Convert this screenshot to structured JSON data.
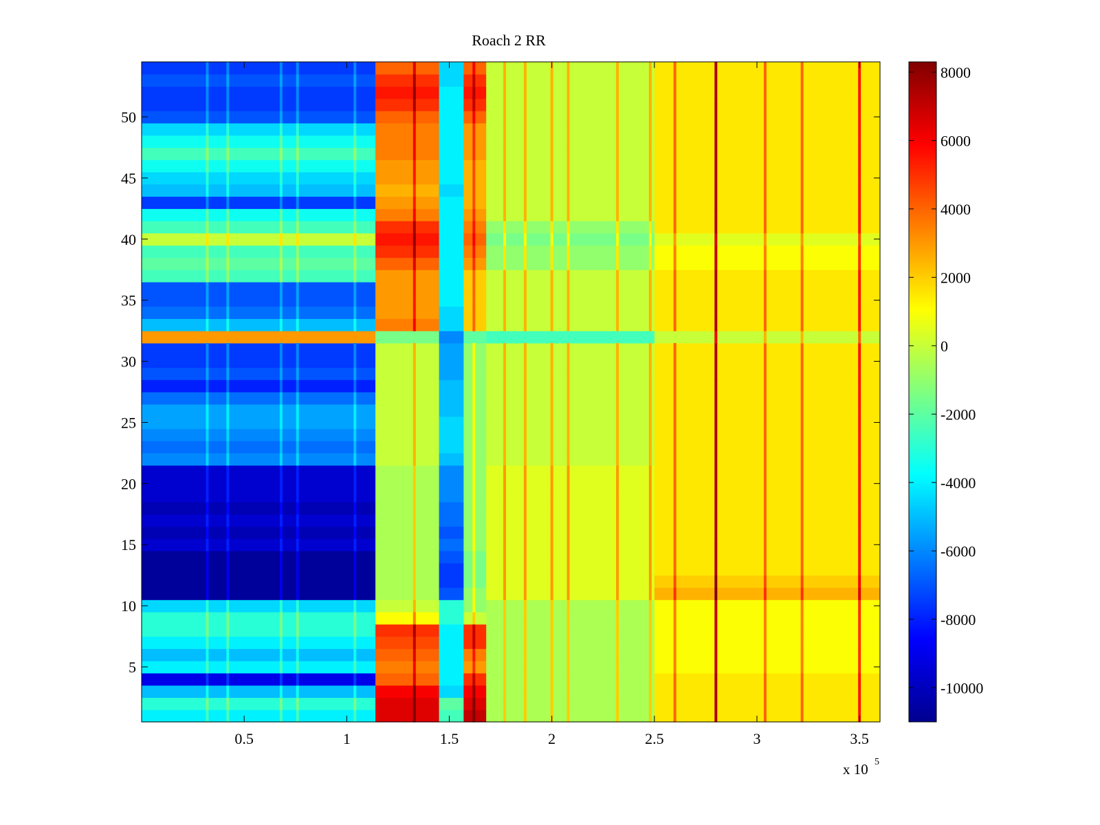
{
  "chart_data": {
    "type": "heatmap",
    "title": "Roach 2 RR",
    "xlabel": "",
    "ylabel": "",
    "x_multiplier_label": "x 10",
    "x_multiplier_exponent": "5",
    "xlim": [
      0,
      360000
    ],
    "ylim": [
      0.5,
      54.5
    ],
    "x_ticks": [
      {
        "value": 50000,
        "label": "0.5"
      },
      {
        "value": 100000,
        "label": "1"
      },
      {
        "value": 150000,
        "label": "1.5"
      },
      {
        "value": 200000,
        "label": "2"
      },
      {
        "value": 250000,
        "label": "2.5"
      },
      {
        "value": 300000,
        "label": "3"
      },
      {
        "value": 350000,
        "label": "3.5"
      }
    ],
    "y_ticks": [
      {
        "value": 5,
        "label": "5"
      },
      {
        "value": 10,
        "label": "10"
      },
      {
        "value": 15,
        "label": "15"
      },
      {
        "value": 20,
        "label": "20"
      },
      {
        "value": 25,
        "label": "25"
      },
      {
        "value": 30,
        "label": "30"
      },
      {
        "value": 35,
        "label": "35"
      },
      {
        "value": 40,
        "label": "40"
      },
      {
        "value": 45,
        "label": "45"
      },
      {
        "value": 50,
        "label": "50"
      }
    ],
    "colorbar": {
      "colormap": "jet",
      "clim": [
        -11000,
        8300
      ],
      "ticks": [
        {
          "value": 8000,
          "label": "8000"
        },
        {
          "value": 6000,
          "label": "6000"
        },
        {
          "value": 4000,
          "label": "4000"
        },
        {
          "value": 2000,
          "label": "2000"
        },
        {
          "value": 0,
          "label": "0"
        },
        {
          "value": -2000,
          "label": "-2000"
        },
        {
          "value": -4000,
          "label": "-4000"
        },
        {
          "value": -6000,
          "label": "-6000"
        },
        {
          "value": -8000,
          "label": "-8000"
        },
        {
          "value": -10000,
          "label": "-10000"
        }
      ]
    },
    "channels": 54,
    "column_bands": [
      {
        "x_start": 0,
        "x_end": 114000,
        "value_by_channel": {
          "1": -4000,
          "2": -3000,
          "3": -5000,
          "4": -9000,
          "5": -4000,
          "6": -5000,
          "7": -4000,
          "8": -3000,
          "9": -3000,
          "10": -4500,
          "11": -10500,
          "12": -10500,
          "13": -10500,
          "14": -10500,
          "15": -9500,
          "16": -10000,
          "17": -9500,
          "18": -10000,
          "19": -9500,
          "20": -9500,
          "21": -9500,
          "22": -6000,
          "23": -6500,
          "24": -6000,
          "25": -5500,
          "26": -5500,
          "27": -6500,
          "28": -8000,
          "29": -7000,
          "30": -7500,
          "31": -7500,
          "32": 3000,
          "33": -5000,
          "34": -6500,
          "35": -7000,
          "36": -7000,
          "37": -2500,
          "38": -2000,
          "39": -2500,
          "40": 0,
          "41": -2500,
          "42": -3500,
          "43": -7500,
          "44": -5000,
          "45": -4500,
          "46": -3500,
          "47": -2500,
          "48": -3500,
          "49": -4500,
          "50": -7000,
          "51": -7500,
          "52": -7500,
          "53": -7000,
          "54": -7500
        }
      },
      {
        "x_start": 114000,
        "x_end": 145000,
        "value_by_channel": {
          "1": 6500,
          "2": 6500,
          "3": 6000,
          "4": 4000,
          "5": 3500,
          "6": 4000,
          "7": 4500,
          "8": 5000,
          "9": 1000,
          "10": 0,
          "11": -500,
          "12": -500,
          "13": -500,
          "14": -500,
          "15": -500,
          "16": -500,
          "17": -500,
          "18": -500,
          "19": -500,
          "20": -500,
          "21": -500,
          "22": 0,
          "23": 0,
          "24": 0,
          "25": 0,
          "26": 0,
          "27": 0,
          "28": 0,
          "29": 0,
          "30": 0,
          "31": 0,
          "32": -1500,
          "33": 3500,
          "34": 3000,
          "35": 3000,
          "36": 3000,
          "37": 3000,
          "38": 4000,
          "39": 5000,
          "40": 5500,
          "41": 5000,
          "42": 3500,
          "43": 3000,
          "44": 2500,
          "45": 3000,
          "46": 3000,
          "47": 3500,
          "48": 3500,
          "49": 3500,
          "50": 4000,
          "51": 5000,
          "52": 5500,
          "53": 5000,
          "54": 4000
        }
      },
      {
        "x_start": 145000,
        "x_end": 157000,
        "value_by_channel": {
          "1": -2500,
          "2": -2000,
          "3": -4500,
          "4": -4000,
          "5": -4000,
          "6": -4000,
          "7": -4000,
          "8": -4000,
          "9": -3000,
          "10": -3000,
          "11": -7000,
          "12": -7500,
          "13": -7500,
          "14": -7000,
          "15": -6500,
          "16": -7000,
          "17": -6500,
          "18": -6500,
          "19": -6000,
          "20": -6000,
          "21": -6000,
          "22": -5000,
          "23": -4500,
          "24": -4500,
          "25": -4500,
          "26": -5000,
          "27": -5000,
          "28": -5000,
          "29": -5500,
          "30": -5500,
          "31": -5500,
          "32": -6000,
          "33": -4500,
          "34": -4500,
          "35": -4000,
          "36": -4000,
          "37": -4000,
          "38": -4000,
          "39": -4000,
          "40": -4000,
          "41": -4000,
          "42": -4000,
          "43": -4000,
          "44": -4500,
          "45": -4000,
          "46": -4000,
          "47": -4000,
          "48": -4000,
          "49": -4000,
          "50": -4000,
          "51": -4000,
          "52": -4000,
          "53": -4500,
          "54": -4500
        }
      },
      {
        "x_start": 157000,
        "x_end": 168000,
        "value_by_channel": {
          "1": 7000,
          "2": 6500,
          "3": 6000,
          "4": 5000,
          "5": 3000,
          "6": 3500,
          "7": 5000,
          "8": 5000,
          "9": 0,
          "10": -1000,
          "11": -1000,
          "12": -1500,
          "13": -1500,
          "14": -1500,
          "15": -1000,
          "16": -1000,
          "17": -1000,
          "18": -1000,
          "19": -1000,
          "20": -1000,
          "21": -1000,
          "22": -1000,
          "23": -1000,
          "24": -1000,
          "25": -1000,
          "26": -1000,
          "27": -1000,
          "28": -1000,
          "29": -1000,
          "30": -1000,
          "31": -1000,
          "32": -2000,
          "33": 2000,
          "34": 2000,
          "35": 2000,
          "36": 2000,
          "37": 2000,
          "38": 3000,
          "39": 3500,
          "40": 4000,
          "41": 3500,
          "42": 3000,
          "43": 2500,
          "44": 2500,
          "45": 2500,
          "46": 2500,
          "47": 3000,
          "48": 3000,
          "49": 3000,
          "50": 4000,
          "51": 5000,
          "52": 5500,
          "53": 5000,
          "54": 4000
        }
      },
      {
        "x_start": 168000,
        "x_end": 250000,
        "value_by_channel": {
          "1": -500,
          "2": -500,
          "3": -500,
          "4": -500,
          "5": -500,
          "6": -500,
          "7": -500,
          "8": -500,
          "9": -500,
          "10": -500,
          "11": 500,
          "12": 500,
          "13": 500,
          "14": 500,
          "15": 500,
          "16": 500,
          "17": 500,
          "18": 500,
          "19": 500,
          "20": 500,
          "21": 500,
          "22": 0,
          "23": 0,
          "24": 0,
          "25": 0,
          "26": 0,
          "27": 0,
          "28": 0,
          "29": 0,
          "30": 0,
          "31": 0,
          "32": -2500,
          "33": 0,
          "34": 0,
          "35": 0,
          "36": 0,
          "37": 0,
          "38": -1000,
          "39": -1000,
          "40": -1500,
          "41": -1000,
          "42": 0,
          "43": 0,
          "44": 0,
          "45": 0,
          "46": 0,
          "47": 0,
          "48": 0,
          "49": 0,
          "50": 0,
          "51": 0,
          "52": 0,
          "53": 0,
          "54": 0
        }
      },
      {
        "x_start": 250000,
        "x_end": 360000,
        "value_by_channel": {
          "1": 1500,
          "2": 1500,
          "3": 1500,
          "4": 1500,
          "5": 1000,
          "6": 1000,
          "7": 1000,
          "8": 1000,
          "9": 1000,
          "10": 1000,
          "11": 2500,
          "12": 2000,
          "13": 1500,
          "14": 1500,
          "15": 1500,
          "16": 1500,
          "17": 1500,
          "18": 1500,
          "19": 1500,
          "20": 1500,
          "21": 1500,
          "22": 1500,
          "23": 1500,
          "24": 1500,
          "25": 1500,
          "26": 1500,
          "27": 1500,
          "28": 1500,
          "29": 1500,
          "30": 1500,
          "31": 1500,
          "32": 0,
          "33": 1500,
          "34": 1500,
          "35": 1500,
          "36": 1500,
          "37": 1500,
          "38": 1000,
          "39": 1000,
          "40": 500,
          "41": 1500,
          "42": 1500,
          "43": 1500,
          "44": 1500,
          "45": 1500,
          "46": 1500,
          "47": 1500,
          "48": 1500,
          "49": 1500,
          "50": 1500,
          "51": 1500,
          "52": 1500,
          "53": 1500,
          "54": 1500
        }
      }
    ],
    "vertical_streaks": [
      {
        "x": 32000,
        "delta": 1500
      },
      {
        "x": 42000,
        "delta": 1500
      },
      {
        "x": 68000,
        "delta": 1500
      },
      {
        "x": 76000,
        "delta": 1500
      },
      {
        "x": 104000,
        "delta": 1500
      },
      {
        "x": 133000,
        "delta": 2500
      },
      {
        "x": 162000,
        "delta": 2000
      },
      {
        "x": 177000,
        "delta": 2500
      },
      {
        "x": 187000,
        "delta": 2500
      },
      {
        "x": 200000,
        "delta": 2500
      },
      {
        "x": 208000,
        "delta": 2500
      },
      {
        "x": 232000,
        "delta": 2500
      },
      {
        "x": 248000,
        "delta": 2500
      },
      {
        "x": 260000,
        "delta": 2500
      },
      {
        "x": 280000,
        "delta": 6000
      },
      {
        "x": 304000,
        "delta": 2500
      },
      {
        "x": 322000,
        "delta": 2500
      },
      {
        "x": 350000,
        "delta": 4000
      }
    ]
  }
}
